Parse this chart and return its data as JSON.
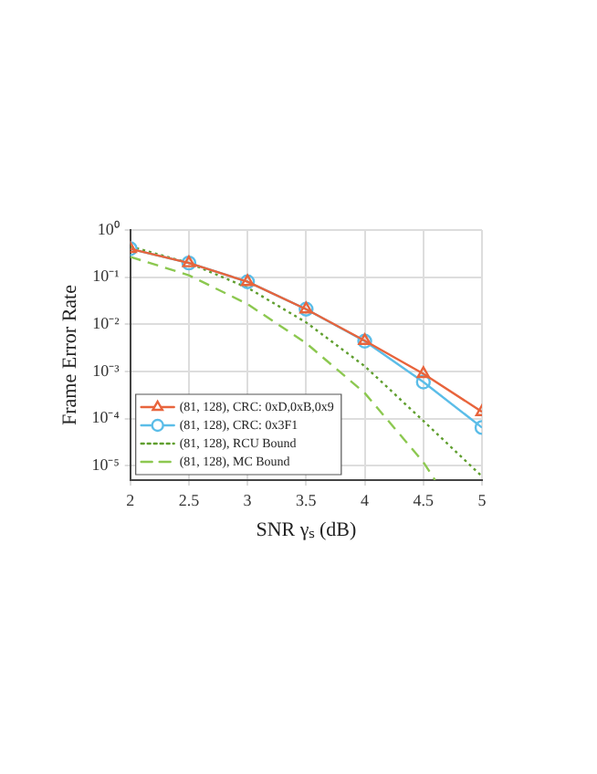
{
  "chart_data": {
    "type": "line",
    "xlabel": "SNR γₛ (dB)",
    "ylabel": "Frame Error Rate",
    "log": "y",
    "grid": true,
    "legend": "bottom left",
    "xlim": [
      2,
      5
    ],
    "xticks": [
      2,
      2.5,
      3,
      3.5,
      4,
      4.5,
      5
    ],
    "ylim": [
      5e-06,
      1
    ],
    "yticks": [
      {
        "value": 1,
        "label": "10⁰"
      },
      {
        "value": 0.1,
        "label": "10⁻¹"
      },
      {
        "value": 0.01,
        "label": "10⁻²"
      },
      {
        "value": 0.001,
        "label": "10⁻³"
      },
      {
        "value": 0.0001,
        "label": "10⁻⁴"
      },
      {
        "value": 1e-05,
        "label": "10⁻⁵"
      }
    ],
    "series": [
      {
        "name": "(81, 128), CRC: 0xD,0xB,0x9",
        "color": "#e8643c",
        "marker": "triangle",
        "line_style": "solid",
        "x": [
          2,
          2.5,
          3,
          3.5,
          4,
          4.5,
          5
        ],
        "values": [
          0.4,
          0.2,
          0.08,
          0.021,
          0.0045,
          0.0009,
          0.00014
        ]
      },
      {
        "name": "(81, 128), CRC: 0x3F1",
        "color": "#5bbde8",
        "marker": "circle",
        "line_style": "solid",
        "x": [
          2,
          2.5,
          3,
          3.5,
          4,
          4.5,
          5
        ],
        "values": [
          0.4,
          0.2,
          0.08,
          0.021,
          0.0044,
          0.0006,
          6.5e-05
        ]
      },
      {
        "name": "(81, 128), RCU Bound",
        "color": "#5f9e2e",
        "marker": "none",
        "line_style": "dotted",
        "x": [
          2,
          2.5,
          3,
          3.5,
          4,
          4.5,
          5
        ],
        "values": [
          0.45,
          0.2,
          0.06,
          0.011,
          0.0013,
          9e-05,
          6e-06
        ]
      },
      {
        "name": "(81, 128), MC Bound",
        "color": "#8cc850",
        "marker": "none",
        "line_style": "dashed",
        "x": [
          2,
          2.5,
          3,
          3.5,
          4,
          4.5,
          4.6
        ],
        "values": [
          0.27,
          0.11,
          0.027,
          0.004,
          0.00035,
          1.2e-05,
          5e-06
        ]
      }
    ]
  }
}
